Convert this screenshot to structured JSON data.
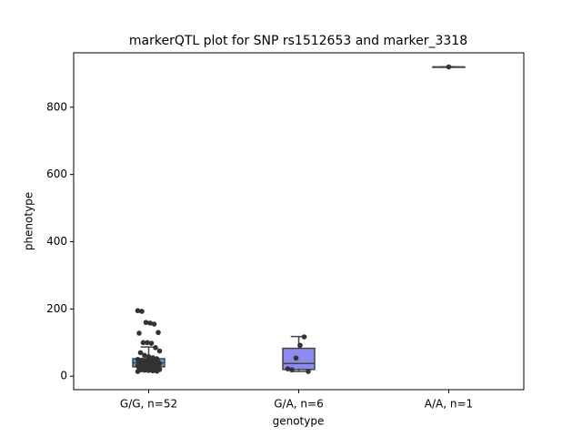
{
  "chart_data": {
    "type": "box",
    "title": "markerQTL plot for SNP rs1512653 and marker_3318",
    "x_label": "genotype",
    "y_label": "phenotype",
    "categories": [
      "G/G, n=52",
      "G/A, n=6",
      "A/A, n=1"
    ],
    "boxes": [
      {
        "whislo": 14,
        "q1": 28,
        "med": 40,
        "q3": 52,
        "whishi": 87,
        "color": "#5aa0e6"
      },
      {
        "whislo": 14,
        "q1": 20,
        "med": 38,
        "q3": 83,
        "whishi": 118,
        "color": "#8c8cf0"
      },
      {
        "whislo": 920,
        "q1": 920,
        "med": 920,
        "q3": 920,
        "whishi": 920,
        "color": "#f08c8c"
      }
    ],
    "points": [
      [
        195,
        193,
        160,
        158,
        155,
        130,
        128,
        100,
        100,
        98,
        85,
        75,
        70,
        62,
        58,
        55,
        52,
        50,
        48,
        47,
        45,
        44,
        43,
        42,
        41,
        40,
        39,
        38,
        37,
        36,
        35,
        34,
        33,
        32,
        31,
        30,
        29,
        28,
        27,
        26,
        25,
        24,
        23,
        22,
        21,
        20,
        19,
        18,
        17,
        16,
        15,
        14
      ],
      [
        22,
        19,
        54,
        92,
        117,
        14
      ],
      [
        920
      ]
    ],
    "point_color": "#333333",
    "ylim": [
      -40,
      962
    ],
    "yticks": [
      0,
      200,
      400,
      600,
      800
    ]
  }
}
